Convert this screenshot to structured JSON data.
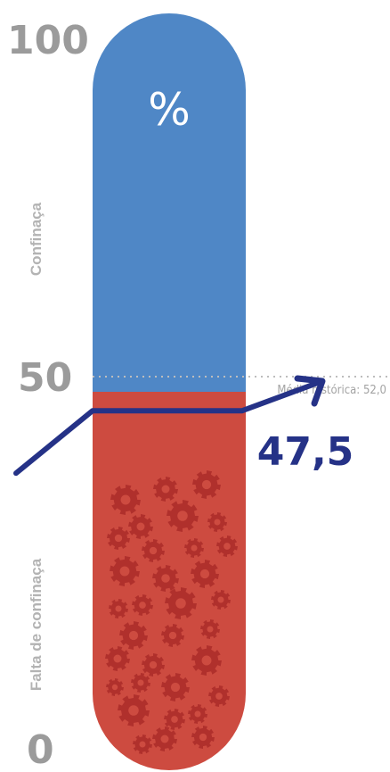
{
  "chart_data": {
    "type": "gauge",
    "title": "",
    "unit_symbol": "%",
    "ylim": [
      0,
      100
    ],
    "ticks": [
      "100",
      "50",
      "0"
    ],
    "value": 47.5,
    "value_label": "47,5",
    "historical_average": 52.0,
    "historical_average_label": "Média histórica: 52,0",
    "regions": [
      {
        "name": "Confinaça",
        "range": [
          50,
          100
        ],
        "color": "#4f87c6"
      },
      {
        "name": "Falta de confinaça",
        "range": [
          0,
          50
        ],
        "color": "#cd4b40"
      }
    ],
    "colors": {
      "indicator": "#253287",
      "gear": "#b0302c",
      "tick_text": "#9b9b9b",
      "average_line": "#bdbdbd"
    }
  }
}
